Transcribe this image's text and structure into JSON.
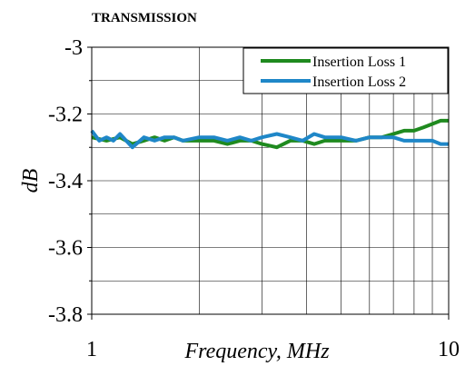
{
  "chart_data": {
    "type": "line",
    "title": "TRANSMISSION",
    "xlabel": "Frequency, MHz",
    "ylabel": "dB",
    "xscale": "log",
    "xlim": [
      1,
      10
    ],
    "ylim": [
      -3.8,
      -3.0
    ],
    "x_ticks": [
      "1",
      "10"
    ],
    "y_ticks": [
      "-3",
      "-3.2",
      "-3.4",
      "-3.6",
      "-3.8"
    ],
    "y_tick_values": [
      -3.0,
      -3.2,
      -3.4,
      -3.6,
      -3.8
    ],
    "grid": true,
    "legend_position": "top-right",
    "series": [
      {
        "name": "Insertion Loss 1",
        "color": "#1f8a1f",
        "x": [
          1.0,
          1.1,
          1.2,
          1.3,
          1.4,
          1.5,
          1.6,
          1.7,
          1.8,
          2.0,
          2.2,
          2.4,
          2.6,
          2.8,
          3.0,
          3.3,
          3.6,
          3.9,
          4.2,
          4.5,
          5.0,
          5.5,
          6.0,
          6.5,
          7.0,
          7.5,
          8.0,
          8.5,
          9.0,
          9.5,
          10.0
        ],
        "values": [
          -3.27,
          -3.28,
          -3.27,
          -3.29,
          -3.28,
          -3.27,
          -3.28,
          -3.27,
          -3.28,
          -3.28,
          -3.28,
          -3.29,
          -3.28,
          -3.28,
          -3.29,
          -3.3,
          -3.28,
          -3.28,
          -3.29,
          -3.28,
          -3.28,
          -3.28,
          -3.27,
          -3.27,
          -3.26,
          -3.25,
          -3.25,
          -3.24,
          -3.23,
          -3.22,
          -3.22
        ]
      },
      {
        "name": "Insertion Loss 2",
        "color": "#1f87c8",
        "x": [
          1.0,
          1.05,
          1.1,
          1.15,
          1.2,
          1.3,
          1.4,
          1.5,
          1.6,
          1.7,
          1.8,
          2.0,
          2.2,
          2.4,
          2.6,
          2.8,
          3.0,
          3.3,
          3.6,
          3.9,
          4.2,
          4.5,
          5.0,
          5.5,
          6.0,
          6.5,
          7.0,
          7.5,
          8.0,
          8.5,
          9.0,
          9.5,
          10.0
        ],
        "values": [
          -3.25,
          -3.28,
          -3.27,
          -3.28,
          -3.26,
          -3.3,
          -3.27,
          -3.28,
          -3.27,
          -3.27,
          -3.28,
          -3.27,
          -3.27,
          -3.28,
          -3.27,
          -3.28,
          -3.27,
          -3.26,
          -3.27,
          -3.28,
          -3.26,
          -3.27,
          -3.27,
          -3.28,
          -3.27,
          -3.27,
          -3.27,
          -3.28,
          -3.28,
          -3.28,
          -3.28,
          -3.29,
          -3.29
        ]
      }
    ]
  }
}
